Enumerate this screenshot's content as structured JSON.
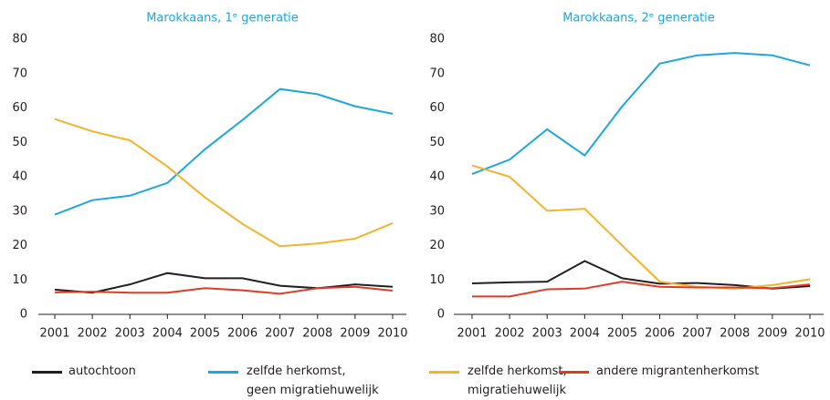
{
  "chart_data": [
    {
      "type": "line",
      "title": "Marokkaans, 1ᵉ generatie",
      "categories": [
        "2001",
        "2002",
        "2003",
        "2004",
        "2005",
        "2006",
        "2007",
        "2008",
        "2009",
        "2010"
      ],
      "ylim": [
        0,
        80
      ],
      "yticks": [
        0,
        10,
        20,
        30,
        40,
        50,
        60,
        70,
        80
      ],
      "grid": false,
      "series": [
        {
          "name": "autochtoon",
          "color": "#231f20",
          "values": [
            7.2,
            6.3,
            8.7,
            12,
            10.5,
            10.5,
            8.3,
            7.6,
            8.7,
            8
          ]
        },
        {
          "name": "zelfde herkomst,\ngeen migratiehuwelijk",
          "color": "#1ea6e0",
          "values": [
            29,
            33.2,
            34.5,
            38.2,
            48,
            56.5,
            65.5,
            64,
            60.5,
            58.3
          ]
        },
        {
          "name": "zelfde herkomst,\nmigratiehuwelijk",
          "color": "#f5b32b",
          "values": [
            56.8,
            53.2,
            50.6,
            43,
            34,
            26.3,
            19.8,
            20.6,
            22,
            26.5
          ]
        },
        {
          "name": "andere migrantenherkomst",
          "color": "#e03c24",
          "values": [
            6.4,
            6.6,
            6.3,
            6.3,
            7.6,
            7,
            6,
            7.6,
            8,
            6.9
          ]
        }
      ]
    },
    {
      "type": "line",
      "title": "Marokkaans, 2ᵉ generatie",
      "categories": [
        "2001",
        "2002",
        "2003",
        "2004",
        "2005",
        "2006",
        "2007",
        "2008",
        "2009",
        "2010"
      ],
      "ylim": [
        0,
        80
      ],
      "yticks": [
        0,
        10,
        20,
        30,
        40,
        50,
        60,
        70,
        80
      ],
      "grid": false,
      "series": [
        {
          "name": "autochtoon",
          "color": "#231f20",
          "values": [
            9,
            9.3,
            9.5,
            15.5,
            10.5,
            8.9,
            9.1,
            8.5,
            7.5,
            8.2
          ]
        },
        {
          "name": "zelfde herkomst,\ngeen migratiehuwelijk",
          "color": "#1ea6e0",
          "values": [
            40.8,
            45,
            53.8,
            46.2,
            60.5,
            72.9,
            75.3,
            76,
            75.3,
            72.4
          ]
        },
        {
          "name": "zelfde herkomst,\nmigratiehuwelijk",
          "color": "#f5b32b",
          "values": [
            43.3,
            40,
            30.1,
            30.7,
            20,
            9.5,
            8,
            7.5,
            8.5,
            10.2
          ]
        },
        {
          "name": "andere migrantenherkomst",
          "color": "#e03c24",
          "values": [
            5.2,
            5.2,
            7.3,
            7.5,
            9.5,
            8,
            7.8,
            7.8,
            7.6,
            8.7
          ]
        }
      ]
    }
  ]
}
